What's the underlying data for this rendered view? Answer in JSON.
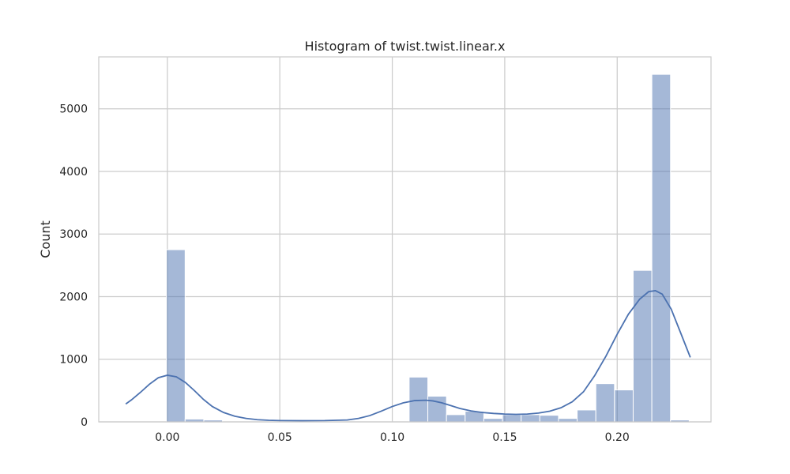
{
  "chart_data": {
    "type": "bar",
    "title": "Histogram of twist.twist.linear.x",
    "xlabel": "",
    "ylabel": "Count",
    "xlim": [
      -0.0305,
      0.2417
    ],
    "ylim": [
      0,
      5829
    ],
    "grid": true,
    "x_ticks": [
      {
        "value": 0.0,
        "label": "0.00"
      },
      {
        "value": 0.05,
        "label": "0.05"
      },
      {
        "value": 0.1,
        "label": "0.10"
      },
      {
        "value": 0.15,
        "label": "0.15"
      },
      {
        "value": 0.2,
        "label": "0.20"
      }
    ],
    "y_ticks": [
      {
        "value": 0,
        "label": "0"
      },
      {
        "value": 1000,
        "label": "1000"
      },
      {
        "value": 2000,
        "label": "2000"
      },
      {
        "value": 3000,
        "label": "3000"
      },
      {
        "value": 4000,
        "label": "4000"
      },
      {
        "value": 5000,
        "label": "5000"
      }
    ],
    "bin_edges": [
      -0.0004,
      0.0079,
      0.0162,
      0.0245,
      0.0328,
      0.0411,
      0.0494,
      0.0577,
      0.066,
      0.0743,
      0.0826,
      0.0909,
      0.0992,
      0.1075,
      0.1158,
      0.1241,
      0.1324,
      0.1407,
      0.149,
      0.1573,
      0.1656,
      0.1739,
      0.1822,
      0.1905,
      0.1988,
      0.2071,
      0.2154,
      0.2237,
      0.232
    ],
    "counts": [
      2750,
      45,
      30,
      0,
      0,
      0,
      0,
      0,
      0,
      0,
      0,
      0,
      0,
      715,
      410,
      115,
      170,
      55,
      115,
      115,
      105,
      55,
      190,
      610,
      510,
      2420,
      5550,
      30
    ],
    "kde": {
      "x": [
        -0.0185,
        -0.016,
        -0.012,
        -0.008,
        -0.004,
        0.0,
        0.004,
        0.008,
        0.012,
        0.016,
        0.02,
        0.025,
        0.03,
        0.035,
        0.04,
        0.045,
        0.05,
        0.06,
        0.07,
        0.08,
        0.085,
        0.09,
        0.095,
        0.1,
        0.105,
        0.11,
        0.115,
        0.118,
        0.122,
        0.126,
        0.13,
        0.135,
        0.14,
        0.145,
        0.15,
        0.155,
        0.16,
        0.165,
        0.17,
        0.175,
        0.18,
        0.185,
        0.19,
        0.195,
        0.2,
        0.205,
        0.21,
        0.214,
        0.217,
        0.22,
        0.224,
        0.228,
        0.2325
      ],
      "y": [
        285,
        350,
        470,
        600,
        705,
        745,
        720,
        630,
        500,
        360,
        245,
        150,
        90,
        55,
        35,
        25,
        20,
        18,
        20,
        30,
        55,
        100,
        170,
        245,
        305,
        340,
        345,
        335,
        305,
        260,
        215,
        175,
        150,
        135,
        125,
        120,
        125,
        140,
        170,
        225,
        320,
        480,
        740,
        1050,
        1400,
        1720,
        1960,
        2080,
        2095,
        2040,
        1800,
        1440,
        1030
      ]
    },
    "bar_color": "#4c72b0",
    "line_color": "#4c72b0"
  }
}
